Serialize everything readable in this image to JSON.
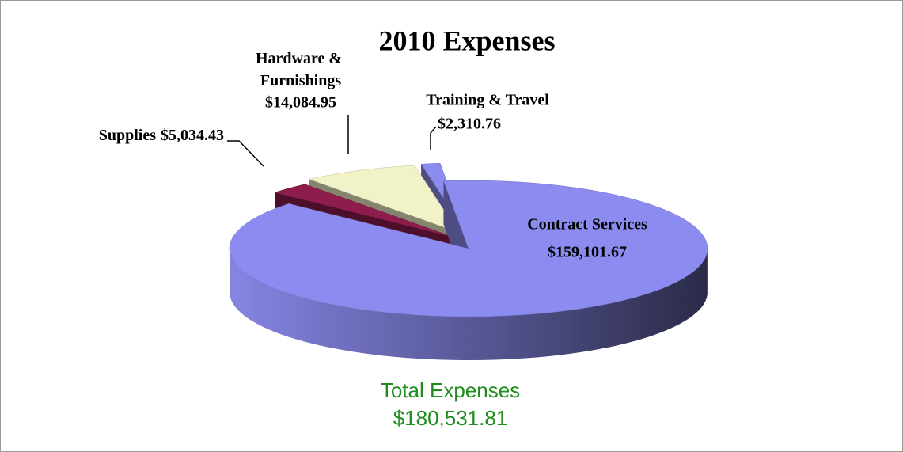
{
  "chart_data": {
    "type": "pie3d",
    "title": "2010 Expenses",
    "categories": [
      "Contract Services",
      "Supplies",
      "Hardware & Furnishings",
      "Training & Travel"
    ],
    "values": [
      159101.67,
      5034.43,
      14084.95,
      2310.76
    ],
    "value_labels": [
      "$159,101.67",
      "$5,034.43",
      "$14,084.95",
      "$2,310.76"
    ],
    "colors": [
      "#8c8cf0",
      "#8e1c4c",
      "#f2f2c8",
      "#8c8cf0"
    ],
    "annotation": [
      "Total Expenses",
      "$180,531.81"
    ]
  }
}
